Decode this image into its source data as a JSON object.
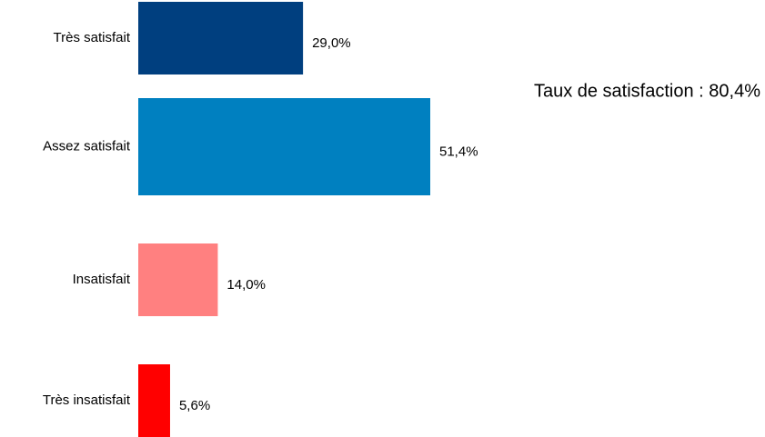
{
  "chart_data": {
    "type": "barh",
    "categories": [
      "Très satisfait",
      "Assez satisfait",
      "Insatisfait",
      "Très insatisfait"
    ],
    "values": [
      29.0,
      51.4,
      14.0,
      5.6
    ],
    "value_labels": [
      "29,0%",
      "51,4%",
      "14,0%",
      "5,6%"
    ],
    "colors": [
      "#003f7f",
      "#0080c0",
      "#ff8080",
      "#ff0000"
    ],
    "annotation": "Taux de satisfaction : 80,4%"
  }
}
